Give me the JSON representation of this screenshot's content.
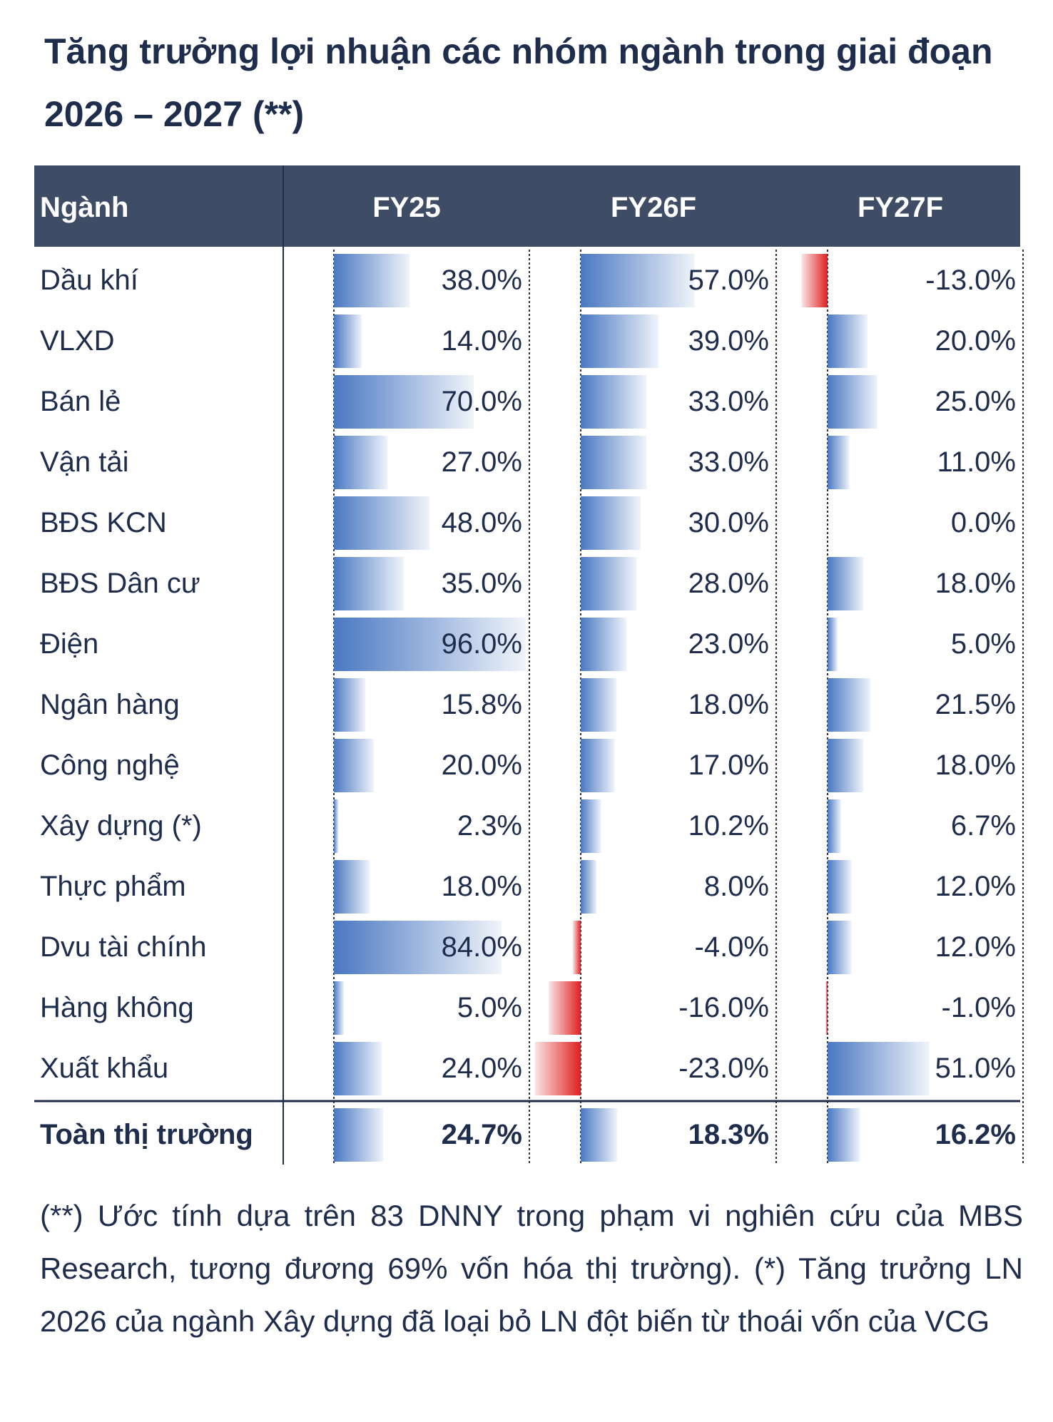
{
  "title": "Tăng trưởng lợi nhuận các nhóm ngành trong giai đoạn 2026 – 2027 (**)",
  "footnote": "(**) Ước tính dựa trên 83 DNNY trong phạm vi nghiên cứu của MBS Research, tương đương 69% vốn hóa thị trường). (*) Tăng trưởng LN 2026 của ngành Xây dựng đã loại bỏ LN đột biến từ thoái vốn của VCG",
  "colors": {
    "header_bg": "#3f4c66",
    "positive_bar": "#4a78c2",
    "negative_bar": "#e02020",
    "text": "#1f2d4d"
  },
  "chart_data": {
    "type": "table",
    "header_label": "Ngành",
    "columns": [
      "FY25",
      "FY26F",
      "FY27F"
    ],
    "rows": [
      {
        "label": "Dầu khí",
        "values": [
          38.0,
          57.0,
          -13.0
        ],
        "display": [
          "38.0%",
          "57.0%",
          "-13.0%"
        ]
      },
      {
        "label": "VLXD",
        "values": [
          14.0,
          39.0,
          20.0
        ],
        "display": [
          "14.0%",
          "39.0%",
          "20.0%"
        ]
      },
      {
        "label": "Bán lẻ",
        "values": [
          70.0,
          33.0,
          25.0
        ],
        "display": [
          "70.0%",
          "33.0%",
          "25.0%"
        ]
      },
      {
        "label": "Vận tải",
        "values": [
          27.0,
          33.0,
          11.0
        ],
        "display": [
          "27.0%",
          "33.0%",
          "11.0%"
        ]
      },
      {
        "label": "BĐS KCN",
        "values": [
          48.0,
          30.0,
          0.0
        ],
        "display": [
          "48.0%",
          "30.0%",
          "0.0%"
        ]
      },
      {
        "label": "BĐS Dân cư",
        "values": [
          35.0,
          28.0,
          18.0
        ],
        "display": [
          "35.0%",
          "28.0%",
          "18.0%"
        ]
      },
      {
        "label": "Điện",
        "values": [
          96.0,
          23.0,
          5.0
        ],
        "display": [
          "96.0%",
          "23.0%",
          "5.0%"
        ]
      },
      {
        "label": "Ngân hàng",
        "values": [
          15.8,
          18.0,
          21.5
        ],
        "display": [
          "15.8%",
          "18.0%",
          "21.5%"
        ]
      },
      {
        "label": "Công nghệ",
        "values": [
          20.0,
          17.0,
          18.0
        ],
        "display": [
          "20.0%",
          "17.0%",
          "18.0%"
        ]
      },
      {
        "label": "Xây dựng (*)",
        "values": [
          2.3,
          10.2,
          6.7
        ],
        "display": [
          "2.3%",
          "10.2%",
          "6.7%"
        ]
      },
      {
        "label": "Thực phẩm",
        "values": [
          18.0,
          8.0,
          12.0
        ],
        "display": [
          "18.0%",
          "8.0%",
          "12.0%"
        ]
      },
      {
        "label": "Dvu tài chính",
        "values": [
          84.0,
          -4.0,
          12.0
        ],
        "display": [
          "84.0%",
          "-4.0%",
          "12.0%"
        ]
      },
      {
        "label": "Hàng không",
        "values": [
          5.0,
          -16.0,
          -1.0
        ],
        "display": [
          "5.0%",
          "-16.0%",
          "-1.0%"
        ]
      },
      {
        "label": "Xuất khẩu",
        "values": [
          24.0,
          -23.0,
          51.0
        ],
        "display": [
          "24.0%",
          "-23.0%",
          "51.0%"
        ]
      }
    ],
    "total": {
      "label": "Toàn thị trường",
      "values": [
        24.7,
        18.3,
        16.2
      ],
      "display": [
        "24.7%",
        "18.3%",
        "16.2%"
      ]
    }
  }
}
